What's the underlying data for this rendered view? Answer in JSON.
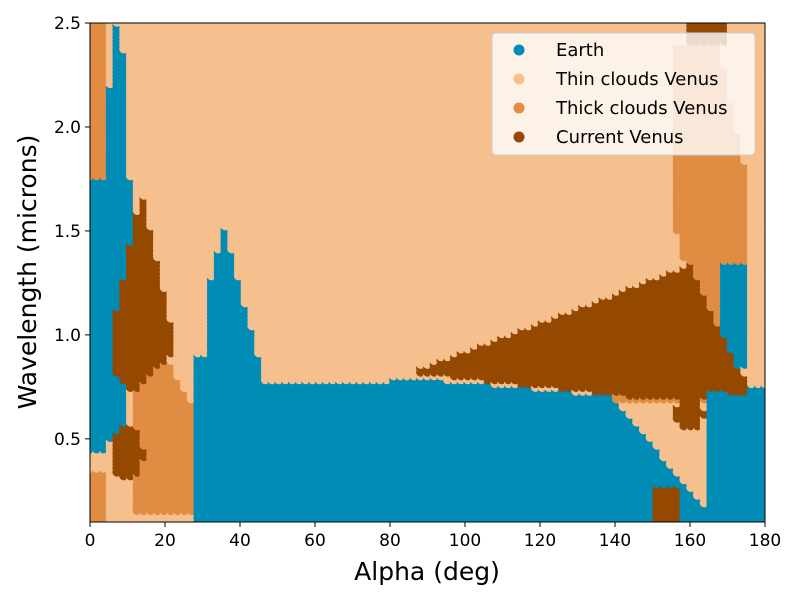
{
  "chart_data": {
    "type": "scatter",
    "title": "",
    "xlabel": "Alpha (deg)",
    "ylabel": "Wavelength (microns)",
    "xlim": [
      0,
      180
    ],
    "ylim": [
      0.1,
      2.5
    ],
    "xticks": [
      0,
      20,
      40,
      60,
      80,
      100,
      120,
      140,
      160,
      180
    ],
    "yticks": [
      0.5,
      1.0,
      1.5,
      2.0,
      2.5
    ],
    "ytick_labels": [
      "0.5",
      "1.0",
      "1.5",
      "2.0",
      "2.5"
    ],
    "grid": false,
    "legend_position": "top-right",
    "series": [
      {
        "name": "Earth",
        "color": "#008cb4"
      },
      {
        "name": "Thin clouds Venus",
        "color": "#f5bf8e"
      },
      {
        "name": "Thick clouds Venus",
        "color": "#e08c42"
      },
      {
        "name": "Current Venus",
        "color": "#944800"
      }
    ],
    "classification_grid": {
      "description_of_encoding": "cells indexed [x,y] in data units; dominant class per cell",
      "alpha_step_deg": 2,
      "wavelength_step_microns": 0.05,
      "alpha_range": [
        0,
        180
      ],
      "wavelength_range": [
        0.1,
        2.5
      ]
    }
  }
}
